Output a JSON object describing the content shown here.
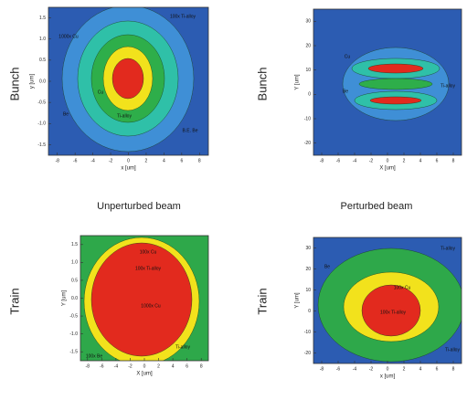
{
  "row_labels": [
    "Bunch",
    "Train"
  ],
  "captions": [
    "Unperturbed beam",
    "Perturbed beam"
  ],
  "panels": [
    {
      "x_label": "x [um]",
      "y_label": "y [um]",
      "x_ticks": [
        "-8",
        "-6",
        "-4",
        "-2",
        "0",
        "2",
        "4",
        "6",
        "8"
      ],
      "y_ticks": [
        "1.5",
        "1.0",
        "0.5",
        "0.0",
        "-0.5",
        "-1.0",
        "-1.5"
      ],
      "annotations": [
        "100x Ti-alloy",
        "1000x Cu",
        "Cu",
        "Be",
        "Ti-alloy",
        "B.E. Be"
      ]
    },
    {
      "x_label": "X [um]",
      "y_label": "Y [um]",
      "x_ticks": [
        "-8",
        "-6",
        "-4",
        "-2",
        "0",
        "2",
        "4",
        "6",
        "8"
      ],
      "y_ticks": [
        "30",
        "20",
        "10",
        "0",
        "-10",
        "-20"
      ],
      "annotations": [
        "Cu",
        "Be",
        "Ti-alloy"
      ]
    },
    {
      "x_label": "X [um]",
      "y_label": "Y [um]",
      "x_ticks": [
        "-8",
        "-6",
        "-4",
        "-2",
        "0",
        "2",
        "4",
        "6",
        "8"
      ],
      "y_ticks": [
        "1.5",
        "1.0",
        "0.5",
        "0.0",
        "-0.5",
        "-1.0",
        "-1.5"
      ],
      "annotations": [
        "100x Cu",
        "100x Ti-alloy",
        "1000x Cu",
        "100x Be",
        "Ti-alloy"
      ]
    },
    {
      "x_label": "x [um]",
      "y_label": "Y [um]",
      "x_ticks": [
        "-8",
        "-6",
        "-4",
        "-2",
        "0",
        "2",
        "4",
        "6",
        "8"
      ],
      "y_ticks": [
        "30",
        "20",
        "10",
        "0",
        "-10",
        "-20"
      ],
      "annotations": [
        "Ti-alloy",
        "Be",
        "100x Cu",
        "100x Ti-alloy",
        "Ti-alloy"
      ]
    }
  ]
}
